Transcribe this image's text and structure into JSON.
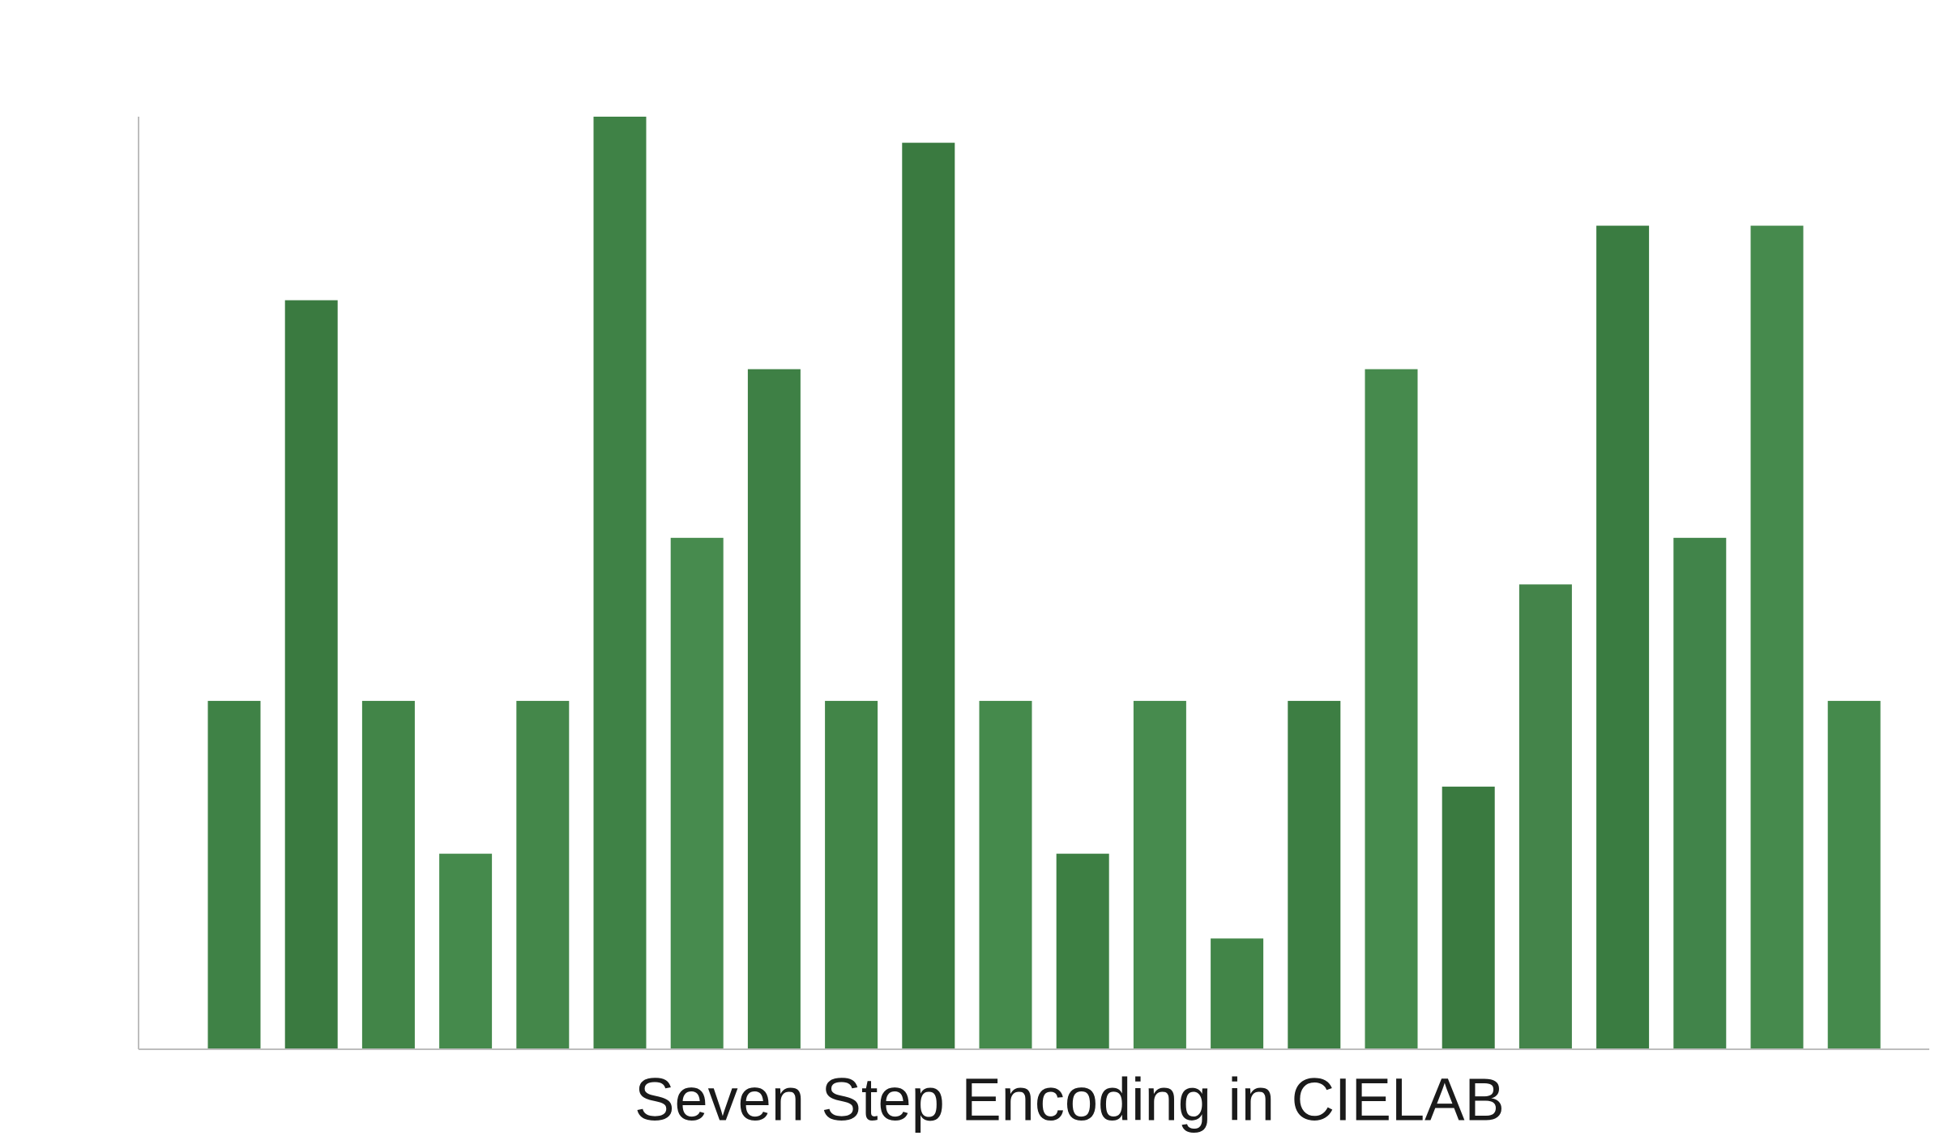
{
  "chart_data": {
    "type": "bar",
    "title": "Seven Step Encoding in CIELAB",
    "categories": [
      null,
      null,
      null,
      null,
      null,
      null,
      null,
      null,
      null,
      null,
      null,
      null,
      null,
      null,
      null,
      null,
      null,
      null,
      null,
      null,
      null,
      null
    ],
    "values": [
      37.3,
      80.3,
      37.3,
      20.9,
      37.3,
      100,
      54.8,
      72.9,
      37.3,
      97.2,
      37.3,
      20.9,
      37.3,
      11.8,
      37.3,
      72.9,
      28.1,
      49.8,
      88.3,
      54.8,
      88.3,
      37.3
    ],
    "colors": [
      "#3f8246",
      "#3a7a40",
      "#428548",
      "#458a4c",
      "#44874a",
      "#3f8246",
      "#478b4e",
      "#3e8045",
      "#428548",
      "#3a7a40",
      "#458a4c",
      "#3d7f43",
      "#478b4e",
      "#428548",
      "#3d7e43",
      "#468a4d",
      "#3a7a40",
      "#44844a",
      "#3a7c41",
      "#41844a",
      "#468a4d",
      "#458a4c"
    ],
    "ylim": [
      0,
      100
    ]
  }
}
